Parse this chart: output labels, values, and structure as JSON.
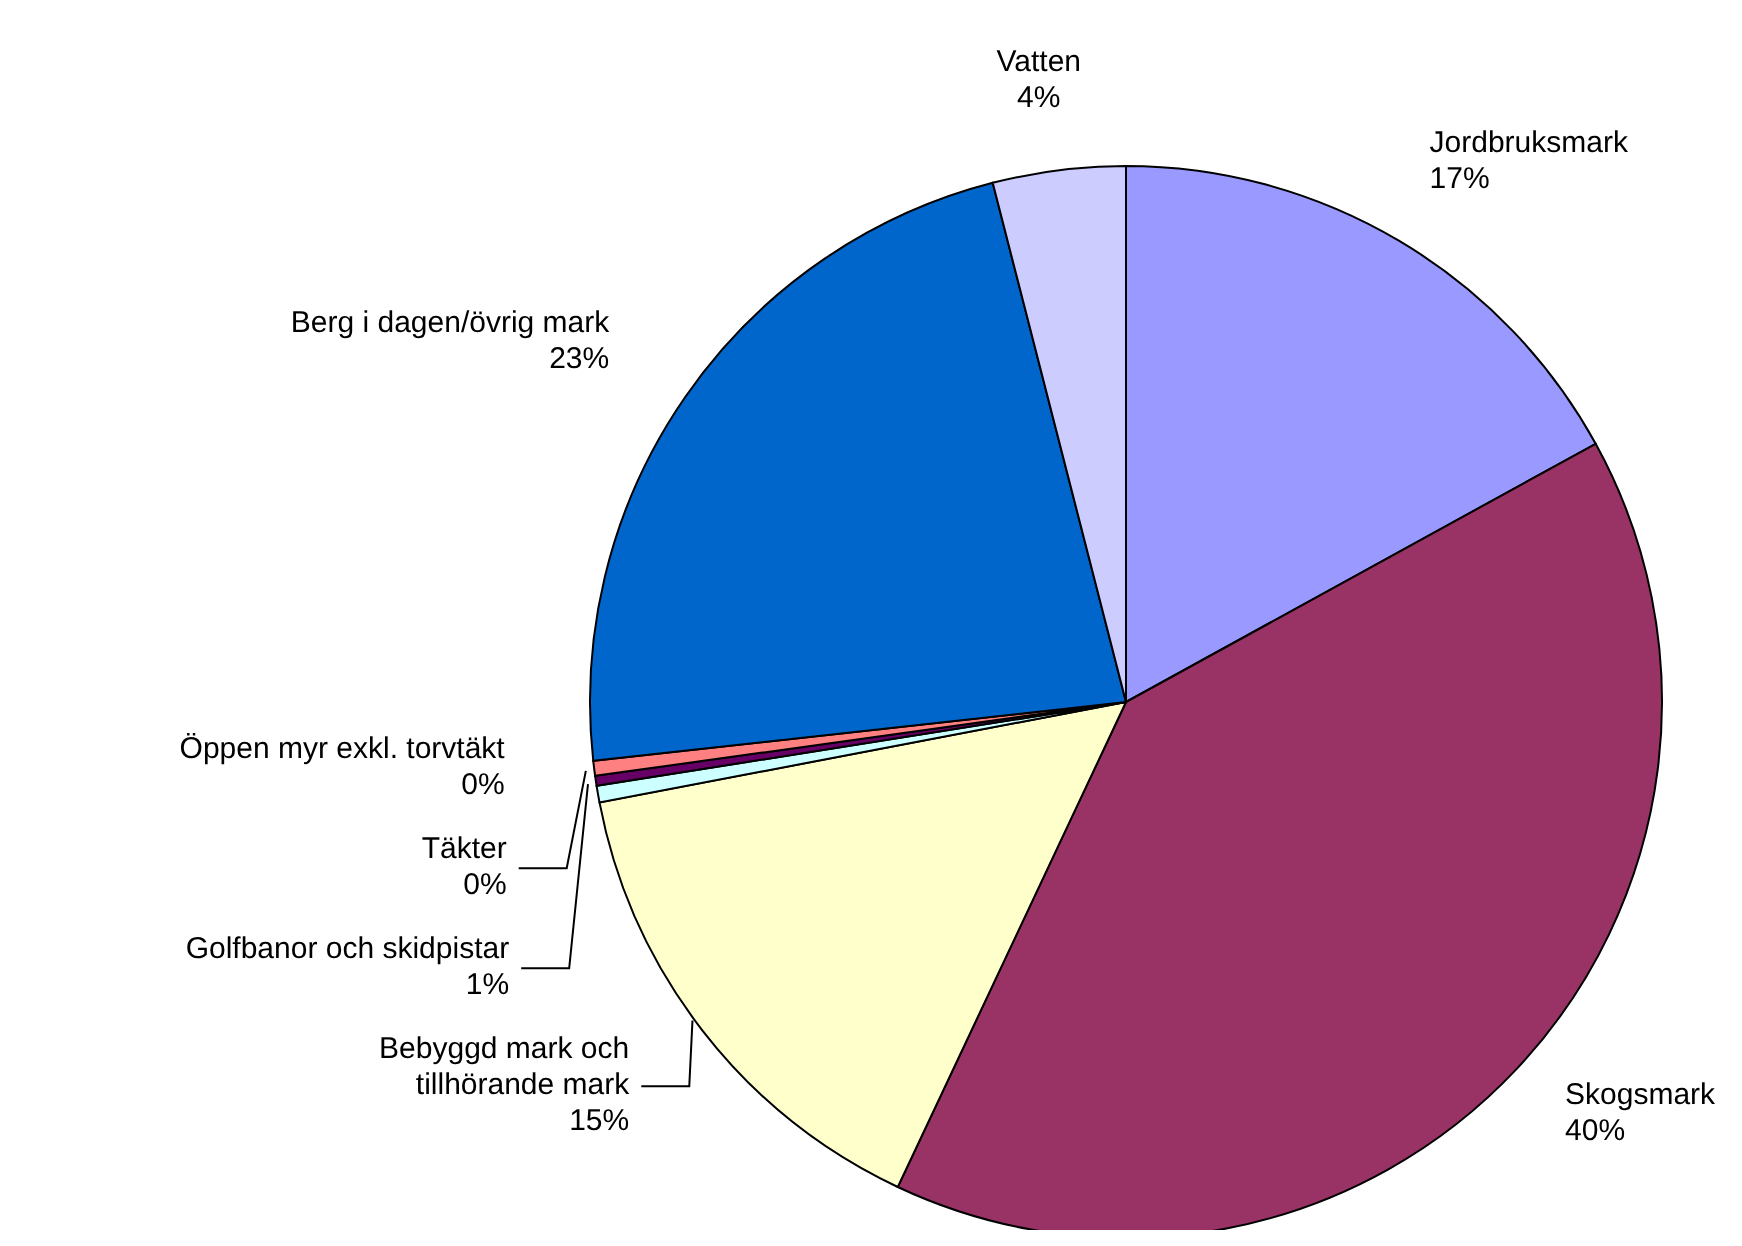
{
  "chart_data": {
    "type": "pie",
    "categories": [
      "Jordbruksmark",
      "Skogsmark",
      "Bebyggd mark och tillhörande mark",
      "Golfbanor och skidpistar",
      "Täkter",
      "Öppen myr exkl. torvtäkt",
      "Berg i dagen/övrig mark",
      "Vatten"
    ],
    "values": [
      17,
      40,
      15,
      0.5,
      0.3,
      0.45,
      22.75,
      4
    ],
    "value_labels": [
      "17%",
      "40%",
      "15%",
      "1%",
      "0%",
      "0%",
      "23%",
      "4%"
    ],
    "colors": [
      "#9999ff",
      "#993366",
      "#ffffcc",
      "#ccffff",
      "#660066",
      "#ff8080",
      "#0066cc",
      "#ccccff"
    ],
    "legend": false
  }
}
